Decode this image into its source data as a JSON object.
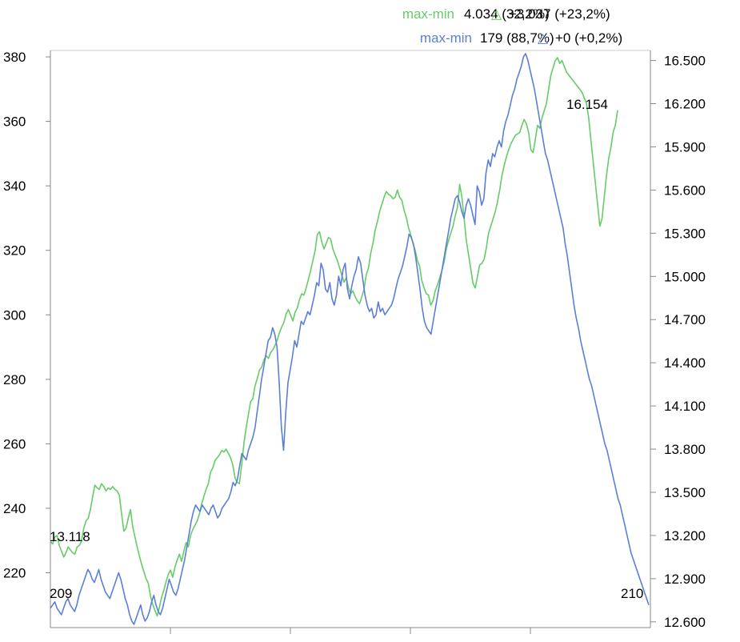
{
  "chart_data": {
    "type": "line",
    "colors": {
      "green": "#66cc66",
      "blue": "#5b7fd8",
      "axis": "#888888",
      "text": "#000000"
    },
    "legend": [
      {
        "key": "max-min",
        "value": "4.034 (32,2%)",
        "delta_symbol": "△",
        "delta": "+3.037 (+23,2%)",
        "color": "#66cc66"
      },
      {
        "key": "max-min",
        "value": "179 (88,7%)",
        "delta_symbol": "△",
        "delta": "+0 (+0,2%)",
        "color": "#5b7fd8"
      }
    ],
    "left_axis": {
      "ticks": [
        "380",
        "360",
        "340",
        "320",
        "300",
        "280",
        "260",
        "240",
        "220"
      ],
      "values": [
        380,
        360,
        340,
        320,
        300,
        280,
        260,
        240,
        220
      ],
      "range": [
        203,
        382
      ]
    },
    "right_axis": {
      "ticks": [
        "16.500",
        "16.200",
        "15.900",
        "15.600",
        "15.300",
        "15.000",
        "14.700",
        "14.400",
        "14.100",
        "13.800",
        "13.500",
        "13.200",
        "12.900",
        "12.600"
      ],
      "values": [
        16500,
        16200,
        15900,
        15600,
        15300,
        15000,
        14700,
        14400,
        14100,
        13800,
        13500,
        13200,
        12900,
        12600
      ],
      "range": [
        12560,
        16570
      ]
    },
    "labels": {
      "green_start": "13.118",
      "green_max": "16.154",
      "blue_start": "209",
      "blue_end": "210"
    },
    "series": [
      {
        "color": "#66cc66",
        "axis": "right",
        "values": [
          13160,
          13140,
          13190,
          13200,
          13130,
          13090,
          13050,
          13080,
          13120,
          13100,
          13080,
          13070,
          13120,
          13130,
          13160,
          13250,
          13300,
          13320,
          13380,
          13470,
          13550,
          13530,
          13520,
          13560,
          13540,
          13510,
          13530,
          13520,
          13540,
          13520,
          13510,
          13480,
          13350,
          13230,
          13250,
          13320,
          13380,
          13260,
          13190,
          13120,
          13060,
          13000,
          12950,
          12900,
          12870,
          12780,
          12720,
          12680,
          12640,
          12700,
          12770,
          12820,
          12880,
          12930,
          12960,
          12910,
          12980,
          13030,
          13070,
          13020,
          13090,
          13150,
          13120,
          13200,
          13240,
          13270,
          13300,
          13350,
          13420,
          13470,
          13520,
          13560,
          13640,
          13670,
          13720,
          13740,
          13760,
          13790,
          13780,
          13800,
          13770,
          13740,
          13690,
          13600,
          13570,
          13560,
          13690,
          13840,
          13950,
          14040,
          14130,
          14150,
          14240,
          14290,
          14350,
          14370,
          14420,
          14450,
          14430,
          14470,
          14490,
          14520,
          14560,
          14610,
          14650,
          14680,
          14740,
          14770,
          14730,
          14690,
          14750,
          14780,
          14840,
          14880,
          14870,
          14920,
          14980,
          15040,
          15110,
          15180,
          15290,
          15310,
          15240,
          15190,
          15230,
          15270,
          15260,
          15190,
          15150,
          15110,
          15060,
          15010,
          14960,
          14990,
          14920,
          14880,
          14900,
          14860,
          14830,
          14810,
          14860,
          14910,
          15010,
          15060,
          15160,
          15230,
          15320,
          15380,
          15450,
          15500,
          15550,
          15590,
          15570,
          15560,
          15540,
          15550,
          15600,
          15550,
          15530,
          15460,
          15410,
          15340,
          15290,
          15230,
          15180,
          15110,
          15070,
          14970,
          14920,
          14880,
          14870,
          14800,
          14830,
          14900,
          14940,
          14990,
          15040,
          15100,
          15190,
          15250,
          15300,
          15350,
          15420,
          15480,
          15640,
          15550,
          15400,
          15250,
          15150,
          15050,
          14950,
          14920,
          15000,
          15080,
          15090,
          15120,
          15200,
          15300,
          15350,
          15400,
          15450,
          15520,
          15600,
          15700,
          15770,
          15830,
          15880,
          15920,
          15950,
          15980,
          15990,
          16000,
          16050,
          16090,
          16060,
          16000,
          15880,
          15860,
          15950,
          16050,
          16030,
          16100,
          16150,
          16200,
          16300,
          16400,
          16450,
          16500,
          16520,
          16480,
          16500,
          16460,
          16420,
          16400,
          16380,
          16360,
          16340,
          16320,
          16300,
          16280,
          16240,
          16200,
          16100,
          15950,
          15800,
          15650,
          15500,
          15350,
          15400,
          15550,
          15700,
          15820,
          15900,
          16000,
          16050,
          16154
        ]
      },
      {
        "color": "#5b7fd8",
        "axis": "left",
        "values": [
          209,
          210,
          211,
          209,
          208,
          207,
          209,
          211,
          212,
          210,
          209,
          208,
          210,
          213,
          215,
          217,
          219,
          221,
          220,
          218,
          217,
          219,
          221,
          218,
          216,
          214,
          213,
          212,
          214,
          216,
          218,
          220,
          218,
          215,
          212,
          210,
          207,
          205,
          204,
          206,
          208,
          210,
          207,
          205,
          206,
          208,
          211,
          213,
          210,
          208,
          207,
          209,
          212,
          215,
          218,
          216,
          214,
          213,
          215,
          218,
          221,
          224,
          228,
          232,
          236,
          239,
          241,
          240,
          239,
          241,
          240,
          239,
          238,
          240,
          241,
          239,
          237,
          238,
          240,
          241,
          242,
          243,
          245,
          248,
          247,
          249,
          253,
          257,
          256,
          255,
          258,
          260,
          262,
          265,
          270,
          275,
          280,
          284,
          288,
          292,
          293,
          296,
          294,
          290,
          279,
          265,
          258,
          270,
          279,
          283,
          287,
          292,
          290,
          294,
          298,
          297,
          299,
          301,
          300,
          303,
          306,
          310,
          309,
          316,
          314,
          308,
          307,
          310,
          305,
          303,
          306,
          312,
          309,
          314,
          316,
          308,
          305,
          309,
          312,
          314,
          318,
          316,
          311,
          306,
          303,
          301,
          302,
          299,
          300,
          304,
          301,
          302,
          300,
          301,
          302,
          303,
          305,
          308,
          311,
          313,
          315,
          318,
          321,
          325,
          324,
          322,
          318,
          313,
          308,
          302,
          298,
          296,
          295,
          294,
          298,
          302,
          306,
          310,
          314,
          318,
          322,
          326,
          330,
          333,
          336,
          337,
          335,
          332,
          330,
          334,
          336,
          334,
          331,
          328,
          340,
          338,
          334,
          336,
          344,
          348,
          346,
          350,
          349,
          352,
          354,
          352,
          357,
          360,
          362,
          365,
          368,
          370,
          373,
          375,
          377,
          380,
          381,
          379,
          376,
          373,
          370,
          366,
          362,
          358,
          354,
          350,
          348,
          345,
          342,
          339,
          336,
          333,
          330,
          327,
          322,
          318,
          313,
          308,
          303,
          299,
          296,
          292,
          289,
          286,
          283,
          280,
          278,
          275,
          272,
          269,
          266,
          263,
          260,
          258,
          255,
          252,
          249,
          246,
          243,
          241,
          238,
          235,
          232,
          229,
          226,
          224,
          222,
          220,
          218,
          216,
          214,
          212,
          210
        ]
      }
    ]
  }
}
